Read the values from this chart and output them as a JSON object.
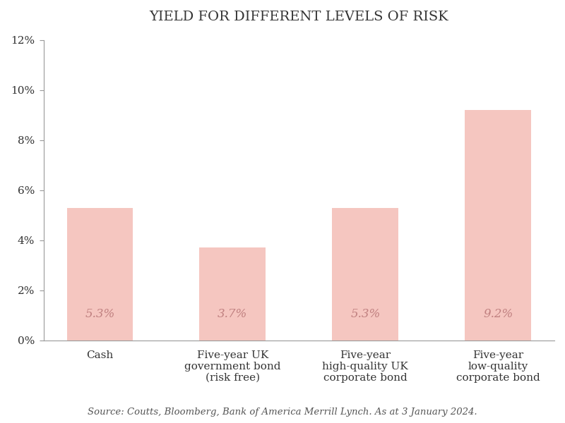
{
  "title": "YIELD FOR DIFFERENT LEVELS OF RISK",
  "categories": [
    "Cash",
    "Five-year UK\ngovernment bond\n(risk free)",
    "Five-year\nhigh-quality UK\ncorporate bond",
    "Five-year\nlow-quality\ncorporate bond"
  ],
  "values": [
    5.3,
    3.7,
    5.3,
    9.2
  ],
  "bar_color": "#f5c6c0",
  "label_color": "#c08080",
  "ylim": [
    0,
    12
  ],
  "yticks": [
    0,
    2,
    4,
    6,
    8,
    10,
    12
  ],
  "ytick_labels": [
    "0%",
    "2%",
    "4%",
    "6%",
    "8%",
    "10%",
    "12%"
  ],
  "bar_width": 0.5,
  "title_fontsize": 14,
  "tick_fontsize": 11,
  "label_fontsize": 12,
  "source_text": "Source: Coutts, Bloomberg, Bank of America Merrill Lynch. As at 3 January 2024.",
  "background_color": "#ffffff",
  "font_family": "serif",
  "spine_color": "#999999",
  "tick_color": "#999999",
  "text_color": "#333333"
}
